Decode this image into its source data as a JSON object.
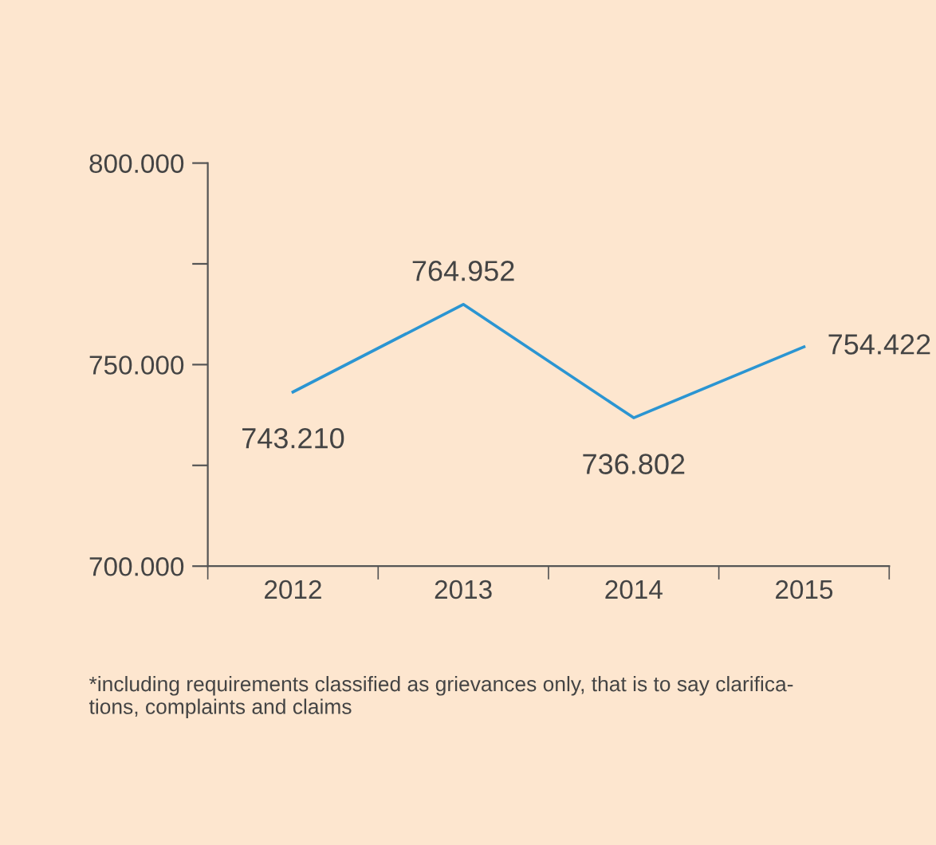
{
  "chart_data": {
    "type": "line",
    "categories": [
      "2012",
      "2013",
      "2014",
      "2015"
    ],
    "series": [
      {
        "color": "#2b95d2",
        "values": [
          743210,
          764952,
          736802,
          754422
        ],
        "value_labels": [
          "743.210",
          "764.952",
          "736.802",
          "754.422"
        ]
      }
    ],
    "ylim": [
      700000,
      800000
    ],
    "yticks": [
      {
        "value": 700000,
        "label": "700.000"
      },
      {
        "value": 725000,
        "label": null
      },
      {
        "value": 750000,
        "label": "750.000"
      },
      {
        "value": 775000,
        "label": null
      },
      {
        "value": 800000,
        "label": "800.000"
      }
    ],
    "grid": false,
    "legend": false,
    "marker": "none",
    "line_style": "solid",
    "annotations": [
      "*including requirements classified as grievances only, that is to say clarifica-\ntions, complaints and claims"
    ]
  }
}
